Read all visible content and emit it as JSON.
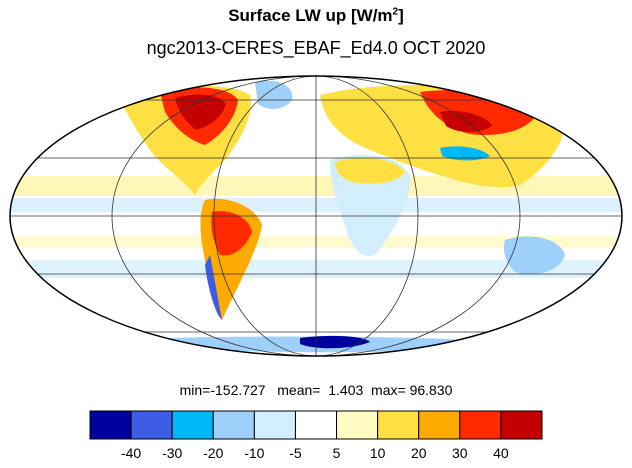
{
  "title": {
    "main": "Surface LW up [W/m",
    "superscript": "2",
    "close": "]"
  },
  "subtitle": "ngc2013-CERES_EBAF_Ed4.0  OCT 2020",
  "stats": {
    "text": "min=-152.727   mean=  1.403  max= 96.830"
  },
  "projection": "Mollweide",
  "colorbar": {
    "colors": [
      "#00009c",
      "#3d5de6",
      "#00b8f5",
      "#9fd0fb",
      "#d2eefc",
      "#ffffff",
      "#fffbc2",
      "#ffe042",
      "#ffaa00",
      "#ff2a00",
      "#c40000"
    ],
    "labels": [
      "-40",
      "-30",
      "-20",
      "-10",
      "-5",
      "5",
      "10",
      "20",
      "30",
      "40"
    ]
  }
}
